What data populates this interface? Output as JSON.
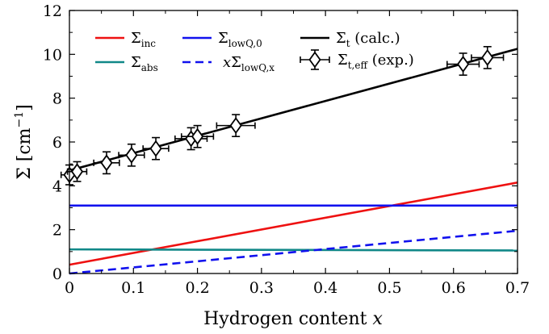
{
  "chart_data": {
    "type": "line",
    "xlabel": {
      "main": "Hydrogen content ",
      "var": "x"
    },
    "ylabel": {
      "sym": "Σ",
      "unit_open": " [cm",
      "sup": "−1",
      "unit_close": "]"
    },
    "xlim": [
      0,
      0.7
    ],
    "ylim": [
      0,
      12
    ],
    "xticks": [
      "0",
      "0.1",
      "0.2",
      "0.3",
      "0.4",
      "0.5",
      "0.6",
      "0.7"
    ],
    "yticks": [
      "0",
      "2",
      "4",
      "6",
      "8",
      "10",
      "12"
    ],
    "grid": false,
    "legend_position": "top",
    "colors": {
      "inc": "#ee1111",
      "abs": "#118888",
      "lowQ": "#1111ee",
      "total": "#000000"
    },
    "series": [
      {
        "name": {
          "sym": "Σ",
          "sub": "inc"
        },
        "style": "solid",
        "x": [
          0,
          0.7
        ],
        "y": [
          0.4,
          4.15
        ]
      },
      {
        "name": {
          "sym": "Σ",
          "sub": "abs"
        },
        "style": "solid",
        "x": [
          0,
          0.7
        ],
        "y": [
          1.1,
          1.05
        ]
      },
      {
        "name": {
          "sym": "Σ",
          "sub": "lowQ,0"
        },
        "style": "solid",
        "x": [
          0,
          0.7
        ],
        "y": [
          3.1,
          3.1
        ]
      },
      {
        "name": {
          "pre": "x",
          "sym": "Σ",
          "sub": "lowQ,x"
        },
        "style": "dashed",
        "x": [
          0,
          0.7
        ],
        "y": [
          0.0,
          1.95
        ]
      },
      {
        "name": {
          "sym": "Σ",
          "sub": "t",
          "post": " (calc.)"
        },
        "style": "solid",
        "x": [
          0,
          0.7
        ],
        "y": [
          4.7,
          10.25
        ]
      }
    ],
    "errorbar_series": {
      "name": {
        "sym": "Σ",
        "sub": "t,eff",
        "post": " (exp.)"
      },
      "points": [
        {
          "x": 0.0,
          "y": 4.5,
          "xerr": 0.013,
          "yerr": 0.45
        },
        {
          "x": 0.012,
          "y": 4.65,
          "xerr": 0.015,
          "yerr": 0.45
        },
        {
          "x": 0.058,
          "y": 5.05,
          "xerr": 0.02,
          "yerr": 0.5
        },
        {
          "x": 0.097,
          "y": 5.4,
          "xerr": 0.02,
          "yerr": 0.5
        },
        {
          "x": 0.135,
          "y": 5.7,
          "xerr": 0.02,
          "yerr": 0.5
        },
        {
          "x": 0.19,
          "y": 6.15,
          "xerr": 0.025,
          "yerr": 0.5
        },
        {
          "x": 0.2,
          "y": 6.25,
          "xerr": 0.025,
          "yerr": 0.5
        },
        {
          "x": 0.26,
          "y": 6.75,
          "xerr": 0.03,
          "yerr": 0.5
        },
        {
          "x": 0.615,
          "y": 9.55,
          "xerr": 0.025,
          "yerr": 0.5
        },
        {
          "x": 0.653,
          "y": 9.85,
          "xerr": 0.025,
          "yerr": 0.5
        }
      ]
    }
  }
}
